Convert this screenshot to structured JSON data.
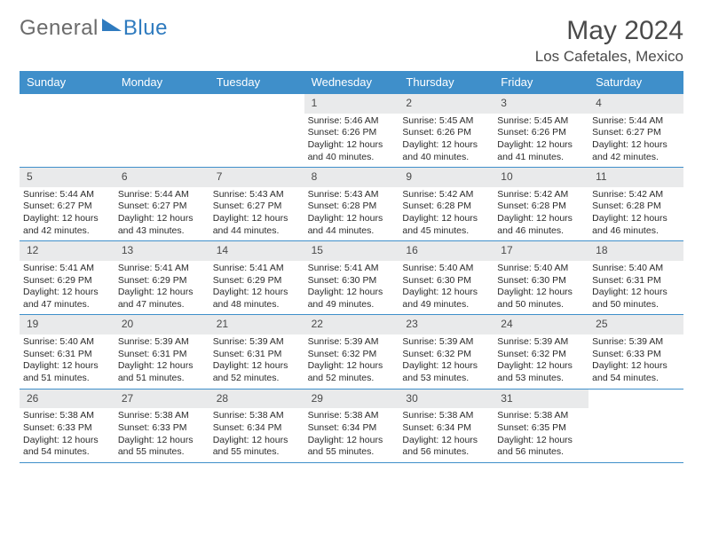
{
  "brand": {
    "part1": "General",
    "part2": "Blue"
  },
  "title": "May 2024",
  "location": "Los Cafetales, Mexico",
  "colors": {
    "header_bg": "#3f8fca",
    "header_text": "#ffffff",
    "daynum_bg": "#e9eaeb",
    "rule": "#3f8fca",
    "text": "#2b2b2b",
    "title_text": "#4a4a4a",
    "logo_gray": "#6b6b6b",
    "logo_blue": "#2f7bbf"
  },
  "day_names": [
    "Sunday",
    "Monday",
    "Tuesday",
    "Wednesday",
    "Thursday",
    "Friday",
    "Saturday"
  ],
  "weeks": [
    [
      null,
      null,
      null,
      {
        "d": "1",
        "sr": "5:46 AM",
        "ss": "6:26 PM",
        "dl": "12 hours and 40 minutes."
      },
      {
        "d": "2",
        "sr": "5:45 AM",
        "ss": "6:26 PM",
        "dl": "12 hours and 40 minutes."
      },
      {
        "d": "3",
        "sr": "5:45 AM",
        "ss": "6:26 PM",
        "dl": "12 hours and 41 minutes."
      },
      {
        "d": "4",
        "sr": "5:44 AM",
        "ss": "6:27 PM",
        "dl": "12 hours and 42 minutes."
      }
    ],
    [
      {
        "d": "5",
        "sr": "5:44 AM",
        "ss": "6:27 PM",
        "dl": "12 hours and 42 minutes."
      },
      {
        "d": "6",
        "sr": "5:44 AM",
        "ss": "6:27 PM",
        "dl": "12 hours and 43 minutes."
      },
      {
        "d": "7",
        "sr": "5:43 AM",
        "ss": "6:27 PM",
        "dl": "12 hours and 44 minutes."
      },
      {
        "d": "8",
        "sr": "5:43 AM",
        "ss": "6:28 PM",
        "dl": "12 hours and 44 minutes."
      },
      {
        "d": "9",
        "sr": "5:42 AM",
        "ss": "6:28 PM",
        "dl": "12 hours and 45 minutes."
      },
      {
        "d": "10",
        "sr": "5:42 AM",
        "ss": "6:28 PM",
        "dl": "12 hours and 46 minutes."
      },
      {
        "d": "11",
        "sr": "5:42 AM",
        "ss": "6:28 PM",
        "dl": "12 hours and 46 minutes."
      }
    ],
    [
      {
        "d": "12",
        "sr": "5:41 AM",
        "ss": "6:29 PM",
        "dl": "12 hours and 47 minutes."
      },
      {
        "d": "13",
        "sr": "5:41 AM",
        "ss": "6:29 PM",
        "dl": "12 hours and 47 minutes."
      },
      {
        "d": "14",
        "sr": "5:41 AM",
        "ss": "6:29 PM",
        "dl": "12 hours and 48 minutes."
      },
      {
        "d": "15",
        "sr": "5:41 AM",
        "ss": "6:30 PM",
        "dl": "12 hours and 49 minutes."
      },
      {
        "d": "16",
        "sr": "5:40 AM",
        "ss": "6:30 PM",
        "dl": "12 hours and 49 minutes."
      },
      {
        "d": "17",
        "sr": "5:40 AM",
        "ss": "6:30 PM",
        "dl": "12 hours and 50 minutes."
      },
      {
        "d": "18",
        "sr": "5:40 AM",
        "ss": "6:31 PM",
        "dl": "12 hours and 50 minutes."
      }
    ],
    [
      {
        "d": "19",
        "sr": "5:40 AM",
        "ss": "6:31 PM",
        "dl": "12 hours and 51 minutes."
      },
      {
        "d": "20",
        "sr": "5:39 AM",
        "ss": "6:31 PM",
        "dl": "12 hours and 51 minutes."
      },
      {
        "d": "21",
        "sr": "5:39 AM",
        "ss": "6:31 PM",
        "dl": "12 hours and 52 minutes."
      },
      {
        "d": "22",
        "sr": "5:39 AM",
        "ss": "6:32 PM",
        "dl": "12 hours and 52 minutes."
      },
      {
        "d": "23",
        "sr": "5:39 AM",
        "ss": "6:32 PM",
        "dl": "12 hours and 53 minutes."
      },
      {
        "d": "24",
        "sr": "5:39 AM",
        "ss": "6:32 PM",
        "dl": "12 hours and 53 minutes."
      },
      {
        "d": "25",
        "sr": "5:39 AM",
        "ss": "6:33 PM",
        "dl": "12 hours and 54 minutes."
      }
    ],
    [
      {
        "d": "26",
        "sr": "5:38 AM",
        "ss": "6:33 PM",
        "dl": "12 hours and 54 minutes."
      },
      {
        "d": "27",
        "sr": "5:38 AM",
        "ss": "6:33 PM",
        "dl": "12 hours and 55 minutes."
      },
      {
        "d": "28",
        "sr": "5:38 AM",
        "ss": "6:34 PM",
        "dl": "12 hours and 55 minutes."
      },
      {
        "d": "29",
        "sr": "5:38 AM",
        "ss": "6:34 PM",
        "dl": "12 hours and 55 minutes."
      },
      {
        "d": "30",
        "sr": "5:38 AM",
        "ss": "6:34 PM",
        "dl": "12 hours and 56 minutes."
      },
      {
        "d": "31",
        "sr": "5:38 AM",
        "ss": "6:35 PM",
        "dl": "12 hours and 56 minutes."
      },
      null
    ]
  ],
  "labels": {
    "sunrise": "Sunrise:",
    "sunset": "Sunset:",
    "daylight": "Daylight:"
  }
}
